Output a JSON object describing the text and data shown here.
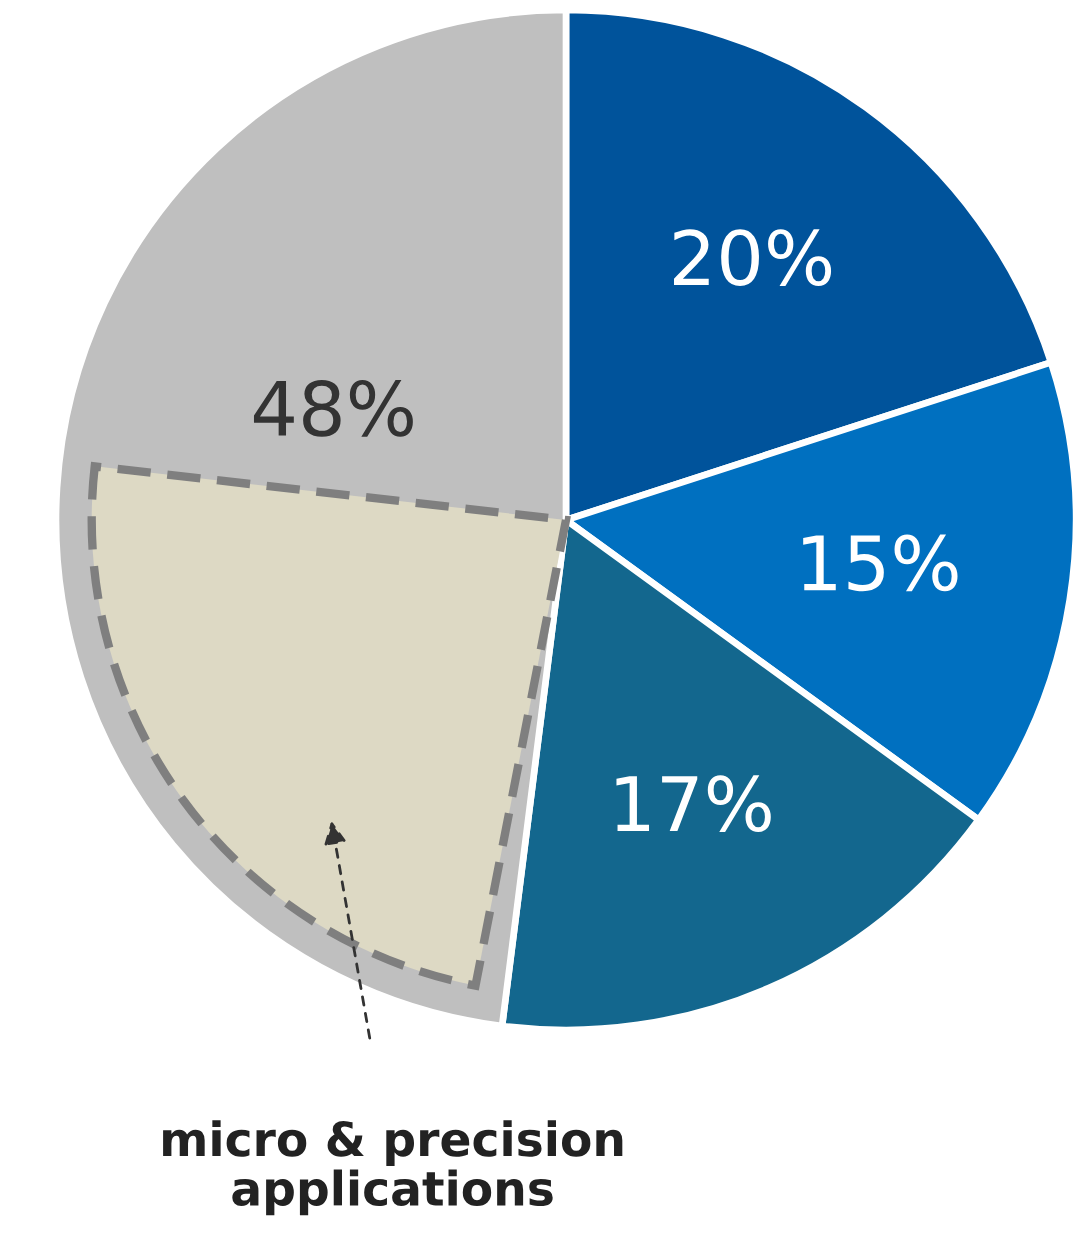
{
  "chart_data": {
    "type": "pie",
    "categories": [
      null,
      null,
      null,
      null
    ],
    "values": [
      20,
      15,
      17,
      48
    ],
    "colors": [
      "#00539b",
      "#0070c0",
      "#13678e",
      "#bfbfbf"
    ],
    "value_labels": [
      "20%",
      "15%",
      "17%",
      "48%"
    ],
    "annotations": [
      "micro & precision applications"
    ]
  }
}
